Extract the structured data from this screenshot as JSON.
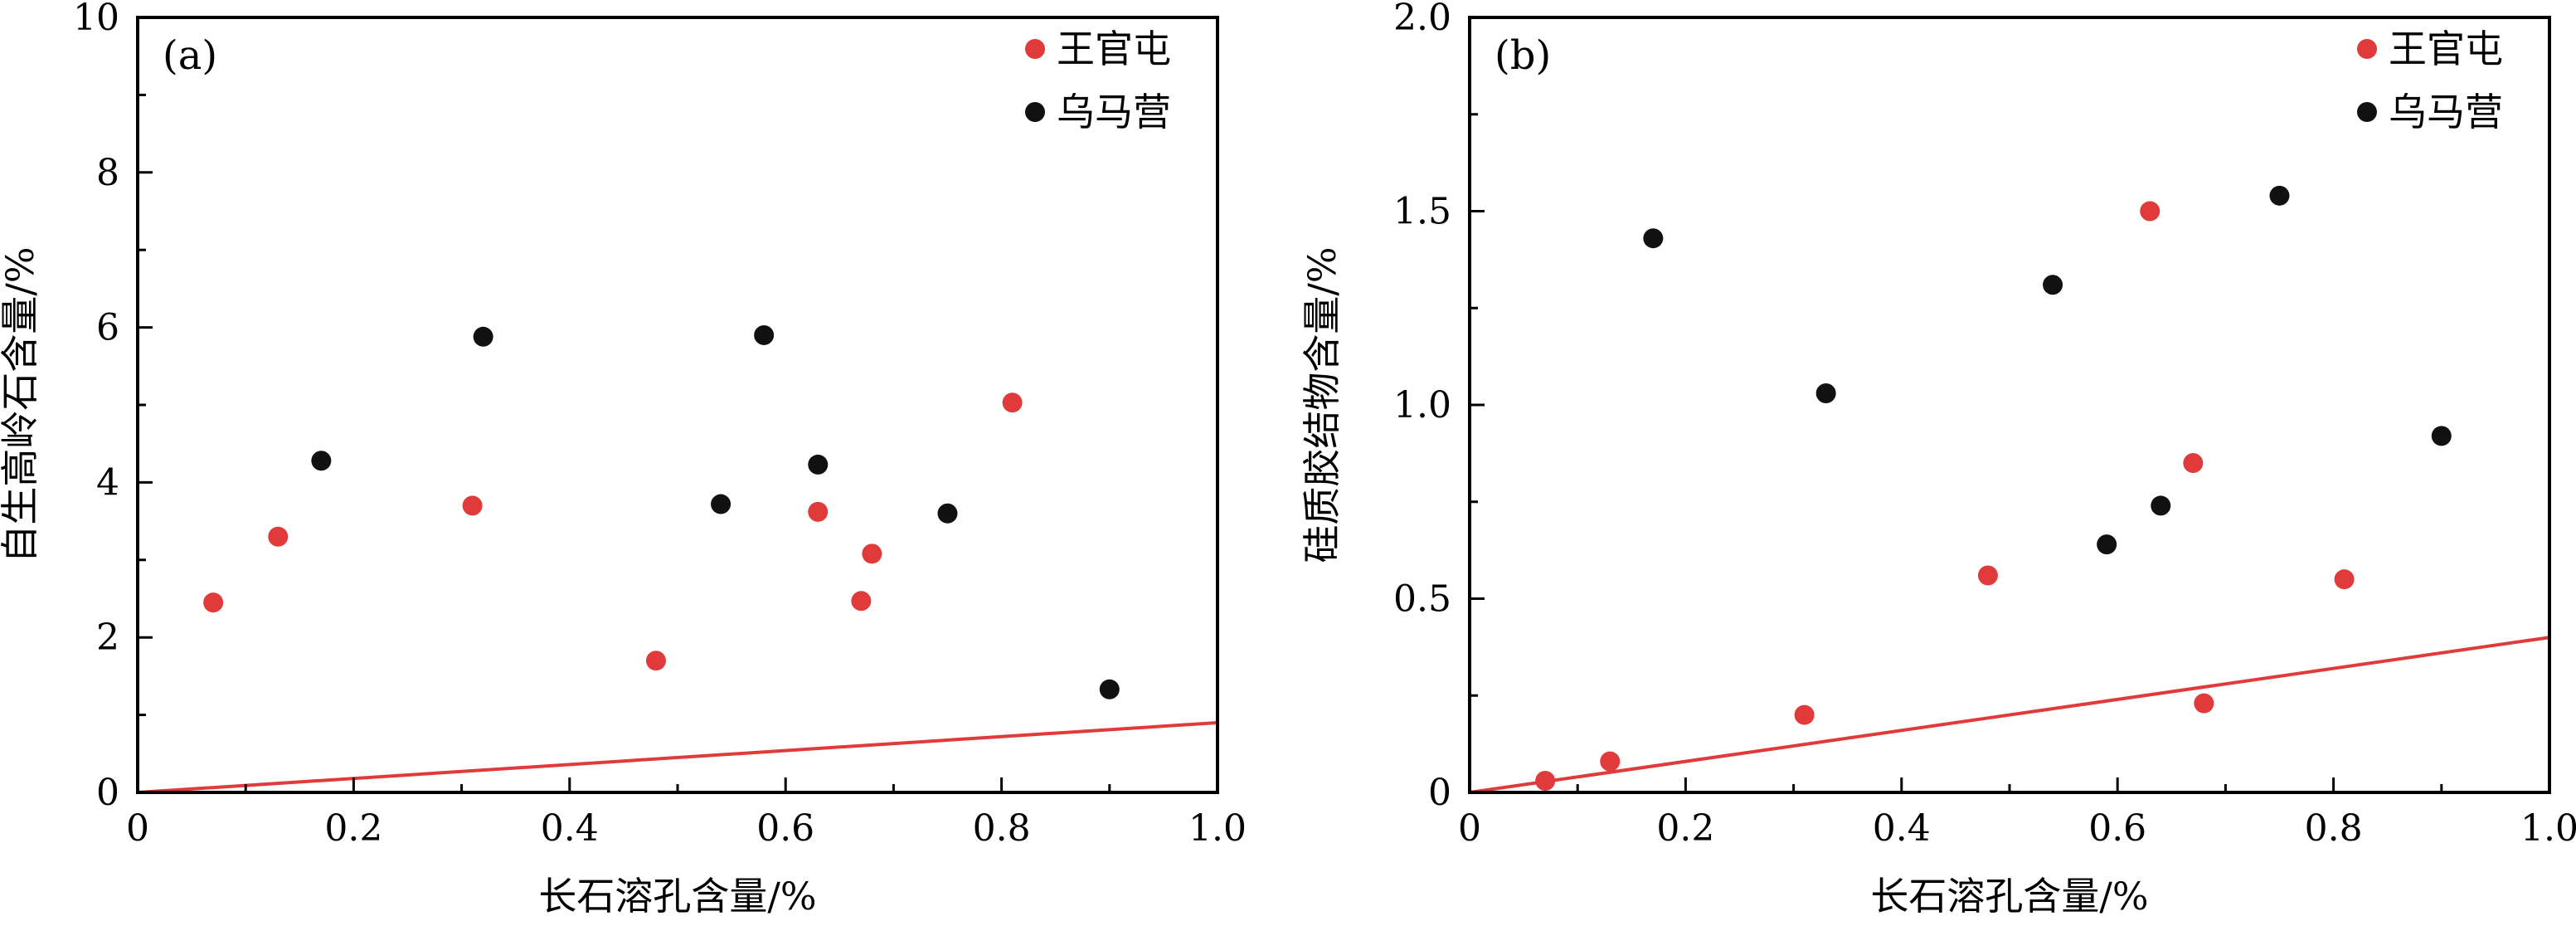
{
  "chart_data": [
    {
      "type": "scatter",
      "panel_label": "(a)",
      "xlabel": "长石溶孔含量/%",
      "ylabel": "自生高岭石含量/%",
      "xlim": [
        0,
        1.0
      ],
      "ylim": [
        0,
        10
      ],
      "x_ticks": [
        "0",
        "0.2",
        "0.4",
        "0.6",
        "0.8",
        "1.0"
      ],
      "y_ticks": [
        "0",
        "2",
        "4",
        "6",
        "8",
        "10"
      ],
      "legend_position": "top-right",
      "series": [
        {
          "name": "王官屯",
          "color": "#e03a3a",
          "points": [
            [
              0.07,
              2.45
            ],
            [
              0.13,
              3.3
            ],
            [
              0.31,
              3.7
            ],
            [
              0.48,
              1.7
            ],
            [
              0.63,
              3.62
            ],
            [
              0.67,
              2.47
            ],
            [
              0.68,
              3.08
            ],
            [
              0.81,
              5.03
            ]
          ]
        },
        {
          "name": "乌马营",
          "color": "#111111",
          "points": [
            [
              0.17,
              4.28
            ],
            [
              0.32,
              5.88
            ],
            [
              0.54,
              3.72
            ],
            [
              0.58,
              5.9
            ],
            [
              0.63,
              4.23
            ],
            [
              0.75,
              3.6
            ],
            [
              0.9,
              1.33
            ]
          ]
        }
      ],
      "reference_line": {
        "color": "#e03a3a",
        "x": [
          0,
          1.0
        ],
        "y": [
          0,
          0.9
        ]
      }
    },
    {
      "type": "scatter",
      "panel_label": "(b)",
      "xlabel": "长石溶孔含量/%",
      "ylabel": "硅质胶结物含量/%",
      "xlim": [
        0,
        1.0
      ],
      "ylim": [
        0,
        2.0
      ],
      "x_ticks": [
        "0",
        "0.2",
        "0.4",
        "0.6",
        "0.8",
        "1.0"
      ],
      "y_ticks": [
        "0",
        "0.5",
        "1.0",
        "1.5",
        "2.0"
      ],
      "legend_position": "top-right",
      "series": [
        {
          "name": "王官屯",
          "color": "#e03a3a",
          "points": [
            [
              0.07,
              0.03
            ],
            [
              0.13,
              0.08
            ],
            [
              0.31,
              0.2
            ],
            [
              0.48,
              0.56
            ],
            [
              0.63,
              1.5
            ],
            [
              0.67,
              0.85
            ],
            [
              0.68,
              0.23
            ],
            [
              0.81,
              0.55
            ]
          ]
        },
        {
          "name": "乌马营",
          "color": "#111111",
          "points": [
            [
              0.17,
              1.43
            ],
            [
              0.33,
              1.03
            ],
            [
              0.54,
              1.31
            ],
            [
              0.59,
              0.64
            ],
            [
              0.64,
              0.74
            ],
            [
              0.75,
              1.54
            ],
            [
              0.9,
              0.92
            ]
          ]
        }
      ],
      "reference_line": {
        "color": "#e03a3a",
        "x": [
          0,
          1.0
        ],
        "y": [
          0,
          0.4
        ]
      }
    }
  ]
}
